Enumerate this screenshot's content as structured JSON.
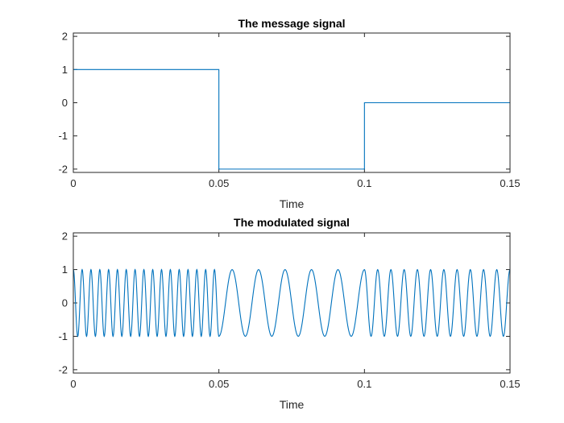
{
  "chart_data": [
    {
      "type": "line",
      "title": "The message signal",
      "xlabel": "Time",
      "ylabel": "",
      "xlim": [
        0,
        0.15
      ],
      "ylim": [
        -2.1,
        2.1
      ],
      "xticks": [
        0,
        0.05,
        0.1,
        0.15
      ],
      "xtick_labels": [
        "0",
        "0.05",
        "0.1",
        "0.15"
      ],
      "yticks": [
        -2,
        -1,
        0,
        1,
        2
      ],
      "ytick_labels": [
        "-2",
        "-1",
        "0",
        "1",
        "2"
      ],
      "color": "#0072BD",
      "grid": false,
      "series": [
        {
          "segments": [
            {
              "x0": 0,
              "x1": 0.05,
              "y": 1
            },
            {
              "x0": 0.05,
              "x1": 0.1,
              "y": -2
            },
            {
              "x0": 0.1,
              "x1": 0.15,
              "y": 0
            }
          ]
        }
      ]
    },
    {
      "type": "line",
      "title": "The modulated signal",
      "xlabel": "Time",
      "ylabel": "",
      "xlim": [
        0,
        0.15
      ],
      "ylim": [
        -2.1,
        2.1
      ],
      "xticks": [
        0,
        0.05,
        0.1,
        0.15
      ],
      "xtick_labels": [
        "0",
        "0.05",
        "0.1",
        "0.15"
      ],
      "yticks": [
        -2,
        -1,
        0,
        1,
        2
      ],
      "ytick_labels": [
        "-2",
        "-1",
        "0",
        "1",
        "2"
      ],
      "color": "#0072BD",
      "grid": false,
      "series": [
        {
          "amplitude": 1,
          "segments": [
            {
              "x0": 0,
              "x1": 0.05,
              "cycles": 16.5
            },
            {
              "x0": 0.05,
              "x1": 0.1,
              "cycles": 5.5
            },
            {
              "x0": 0.1,
              "x1": 0.15,
              "cycles": 11
            }
          ]
        }
      ]
    }
  ]
}
